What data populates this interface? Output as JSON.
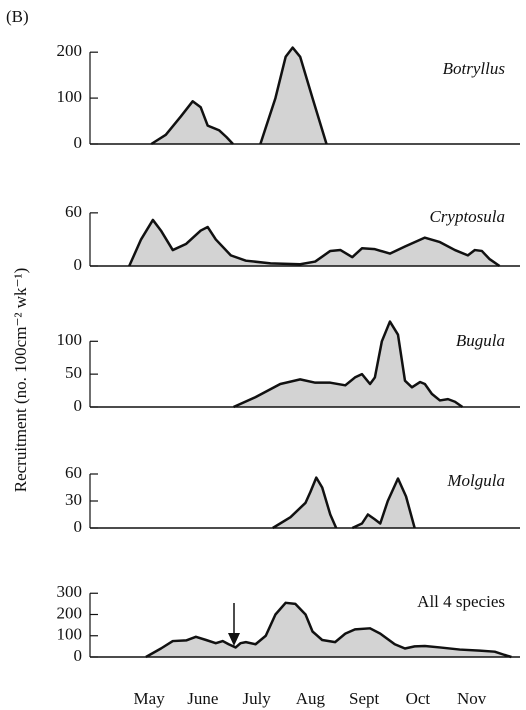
{
  "panel_label": "(B)",
  "ylabel": "Recruitment (no. 100cm⁻² wk⁻¹)",
  "chart_data": [
    {
      "type": "area",
      "title": "Botryllus",
      "x": [
        5.04,
        5.31,
        5.59,
        5.81,
        5.96,
        6.09,
        6.3,
        6.44,
        6.56,
        null,
        7.07,
        7.35,
        7.54,
        7.67,
        7.81,
        8.04,
        8.3
      ],
      "values": [
        0,
        20,
        60,
        93,
        80,
        40,
        30,
        15,
        0,
        null,
        0,
        100,
        190,
        210,
        190,
        100,
        0
      ],
      "xlim": [
        3.9,
        11.9
      ],
      "ylim": [
        0,
        220
      ],
      "yticks": [
        0,
        100,
        200
      ],
      "color": "#d3d3d3"
    },
    {
      "type": "area",
      "title": "Cryptosula",
      "x": [
        4.63,
        4.85,
        5.07,
        5.22,
        5.44,
        5.69,
        5.96,
        6.09,
        6.24,
        6.52,
        6.8,
        7.26,
        7.81,
        8.09,
        8.37,
        8.56,
        8.78,
        8.96,
        9.2,
        9.48,
        9.76,
        10.13,
        10.41,
        10.69,
        10.93,
        11.06,
        11.19,
        11.33,
        11.52
      ],
      "values": [
        0,
        30,
        52,
        40,
        18,
        25,
        40,
        44,
        30,
        12,
        6,
        3,
        2,
        5,
        17,
        18,
        10,
        20,
        19,
        14,
        22,
        32,
        27,
        18,
        12,
        18,
        17,
        8,
        0
      ],
      "xlim": [
        3.9,
        11.9
      ],
      "ylim": [
        0,
        70
      ],
      "yticks": [
        0,
        60
      ],
      "color": "#d3d3d3"
    },
    {
      "type": "area",
      "title": "Bugula",
      "x": [
        6.57,
        6.98,
        7.44,
        7.81,
        8.09,
        8.37,
        8.65,
        8.83,
        8.96,
        9.11,
        9.2,
        9.33,
        9.48,
        9.63,
        9.76,
        9.89,
        10.04,
        10.13,
        10.26,
        10.41,
        10.56,
        10.69,
        10.83
      ],
      "values": [
        0,
        15,
        35,
        42,
        37,
        37,
        33,
        45,
        50,
        35,
        45,
        100,
        130,
        110,
        40,
        30,
        38,
        35,
        20,
        10,
        12,
        8,
        0
      ],
      "xlim": [
        3.9,
        11.9
      ],
      "ylim": [
        0,
        140
      ],
      "yticks": [
        0,
        50,
        100
      ],
      "color": "#d3d3d3"
    },
    {
      "type": "area",
      "title": "Molgula",
      "x": [
        7.3,
        7.63,
        7.91,
        8.0,
        8.11,
        8.22,
        8.37,
        8.48,
        null,
        8.78,
        8.96,
        9.07,
        9.19,
        9.3,
        9.44,
        9.63,
        9.78,
        9.94
      ],
      "values": [
        0,
        12,
        28,
        40,
        56,
        45,
        15,
        0,
        null,
        0,
        5,
        15,
        10,
        5,
        30,
        55,
        35,
        0
      ],
      "xlim": [
        3.9,
        11.9
      ],
      "ylim": [
        0,
        70
      ],
      "yticks": [
        0,
        30,
        60
      ],
      "color": "#d3d3d3"
    },
    {
      "type": "area",
      "title": "All 4 species",
      "x": [
        4.94,
        5.22,
        5.44,
        5.69,
        5.87,
        6.06,
        6.24,
        6.37,
        6.48,
        6.61,
        6.7,
        6.8,
        6.98,
        7.17,
        7.35,
        7.54,
        7.72,
        7.91,
        8.04,
        8.22,
        8.46,
        8.65,
        8.83,
        9.11,
        9.3,
        9.57,
        9.76,
        9.94,
        10.13,
        10.41,
        10.78,
        11.15,
        11.43,
        11.61,
        11.74
      ],
      "values": [
        0,
        40,
        75,
        78,
        95,
        80,
        65,
        75,
        60,
        45,
        65,
        70,
        60,
        100,
        200,
        255,
        250,
        200,
        120,
        80,
        70,
        110,
        130,
        135,
        110,
        60,
        40,
        50,
        52,
        45,
        35,
        30,
        25,
        10,
        0
      ],
      "xlim": [
        3.9,
        11.9
      ],
      "ylim": [
        0,
        320
      ],
      "yticks": [
        0,
        100,
        200,
        300
      ],
      "color": "#d3d3d3",
      "xticks": [
        {
          "value": 5,
          "label": "May"
        },
        {
          "value": 6,
          "label": "June"
        },
        {
          "value": 7,
          "label": "July"
        },
        {
          "value": 8,
          "label": "Aug"
        },
        {
          "value": 9,
          "label": "Sept"
        },
        {
          "value": 10,
          "label": "Oct"
        },
        {
          "value": 11,
          "label": "Nov"
        }
      ]
    }
  ]
}
